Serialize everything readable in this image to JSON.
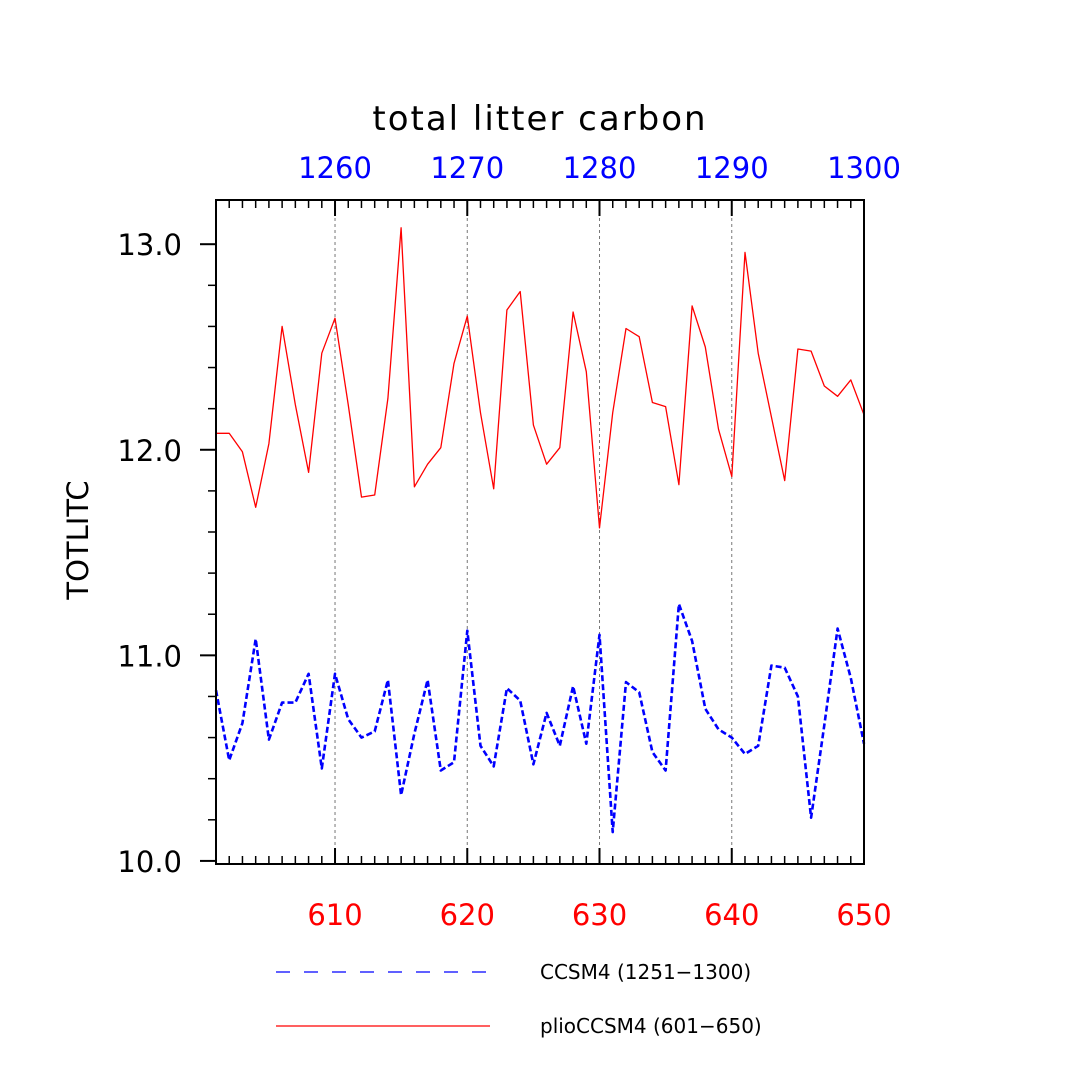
{
  "chart_data": {
    "type": "line",
    "title": "total litter carbon",
    "ylabel": "TOTLITC",
    "ylim": [
      10.0,
      13.0
    ],
    "y_ticks": [
      "10.0",
      "11.0",
      "12.0",
      "13.0"
    ],
    "x_bottom": {
      "range": [
        601,
        650
      ],
      "ticks": [
        "610",
        "620",
        "630",
        "640",
        "650"
      ],
      "color": "#ff0000"
    },
    "x_top": {
      "range": [
        1251,
        1300
      ],
      "ticks": [
        "1260",
        "1270",
        "1280",
        "1290",
        "1300"
      ],
      "color": "#0000ff"
    },
    "grid": "vertical dashed at major x ticks",
    "legend_position": "bottom",
    "series": [
      {
        "name": "CCSM4 (1251−1300)",
        "color": "#0000ff",
        "style": "dashed",
        "x": [
          1251,
          1252,
          1253,
          1254,
          1255,
          1256,
          1257,
          1258,
          1259,
          1260,
          1261,
          1262,
          1263,
          1264,
          1265,
          1266,
          1267,
          1268,
          1269,
          1270,
          1271,
          1272,
          1273,
          1274,
          1275,
          1276,
          1277,
          1278,
          1279,
          1280,
          1281,
          1282,
          1283,
          1284,
          1285,
          1286,
          1287,
          1288,
          1289,
          1290,
          1291,
          1292,
          1293,
          1294,
          1295,
          1296,
          1297,
          1298,
          1299,
          1300
        ],
        "values": [
          10.83,
          10.49,
          10.67,
          11.08,
          10.59,
          10.77,
          10.77,
          10.91,
          10.45,
          10.91,
          10.69,
          10.6,
          10.63,
          10.88,
          10.32,
          10.62,
          10.88,
          10.44,
          10.48,
          11.12,
          10.56,
          10.46,
          10.84,
          10.78,
          10.47,
          10.72,
          10.56,
          10.85,
          10.57,
          11.1,
          10.14,
          10.87,
          10.82,
          10.53,
          10.44,
          11.25,
          11.07,
          10.74,
          10.64,
          10.6,
          10.52,
          10.56,
          10.95,
          10.94,
          10.8,
          10.21,
          10.66,
          11.13,
          10.89,
          10.57
        ]
      },
      {
        "name": "plioCCSM4 (601−650)",
        "color": "#ff0000",
        "style": "solid",
        "x": [
          601,
          602,
          603,
          604,
          605,
          606,
          607,
          608,
          609,
          610,
          611,
          612,
          613,
          614,
          615,
          616,
          617,
          618,
          619,
          620,
          621,
          622,
          623,
          624,
          625,
          626,
          627,
          628,
          629,
          630,
          631,
          632,
          633,
          634,
          635,
          636,
          637,
          638,
          639,
          640,
          641,
          642,
          643,
          644,
          645,
          646,
          647,
          648,
          649,
          650
        ],
        "values": [
          12.08,
          12.08,
          11.99,
          11.72,
          12.03,
          12.6,
          12.22,
          11.89,
          12.47,
          12.64,
          12.22,
          11.77,
          11.78,
          12.25,
          13.08,
          11.82,
          11.93,
          12.01,
          12.42,
          12.65,
          12.18,
          11.81,
          12.68,
          12.77,
          12.12,
          11.93,
          12.01,
          12.67,
          12.38,
          11.62,
          12.18,
          12.59,
          12.55,
          12.23,
          12.21,
          11.83,
          12.7,
          12.5,
          12.1,
          11.87,
          12.96,
          12.47,
          12.16,
          11.85,
          12.49,
          12.48,
          12.31,
          12.26,
          12.34,
          12.17
        ]
      }
    ]
  }
}
